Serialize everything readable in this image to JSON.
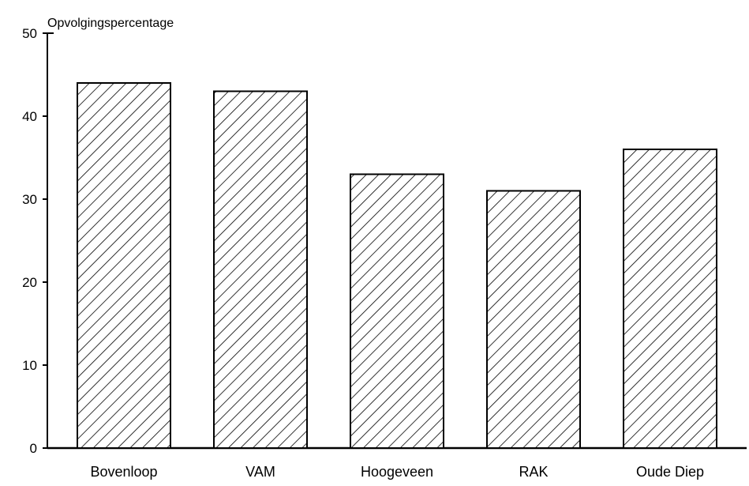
{
  "chart_data": {
    "type": "bar",
    "title": "",
    "ylabel": "Opvolgingspercentage",
    "xlabel": "",
    "categories": [
      "Bovenloop",
      "VAM",
      "Hoogeveen",
      "RAK",
      "Oude Diep"
    ],
    "values": [
      44,
      43,
      33,
      31,
      36
    ],
    "ylim": [
      0,
      50
    ],
    "yticks": [
      0,
      10,
      20,
      30,
      40,
      50
    ],
    "grid": false,
    "legend": "none",
    "bar_fill": "diagonal-hatch",
    "colors": {
      "line": "#000000",
      "background": "#ffffff"
    }
  }
}
